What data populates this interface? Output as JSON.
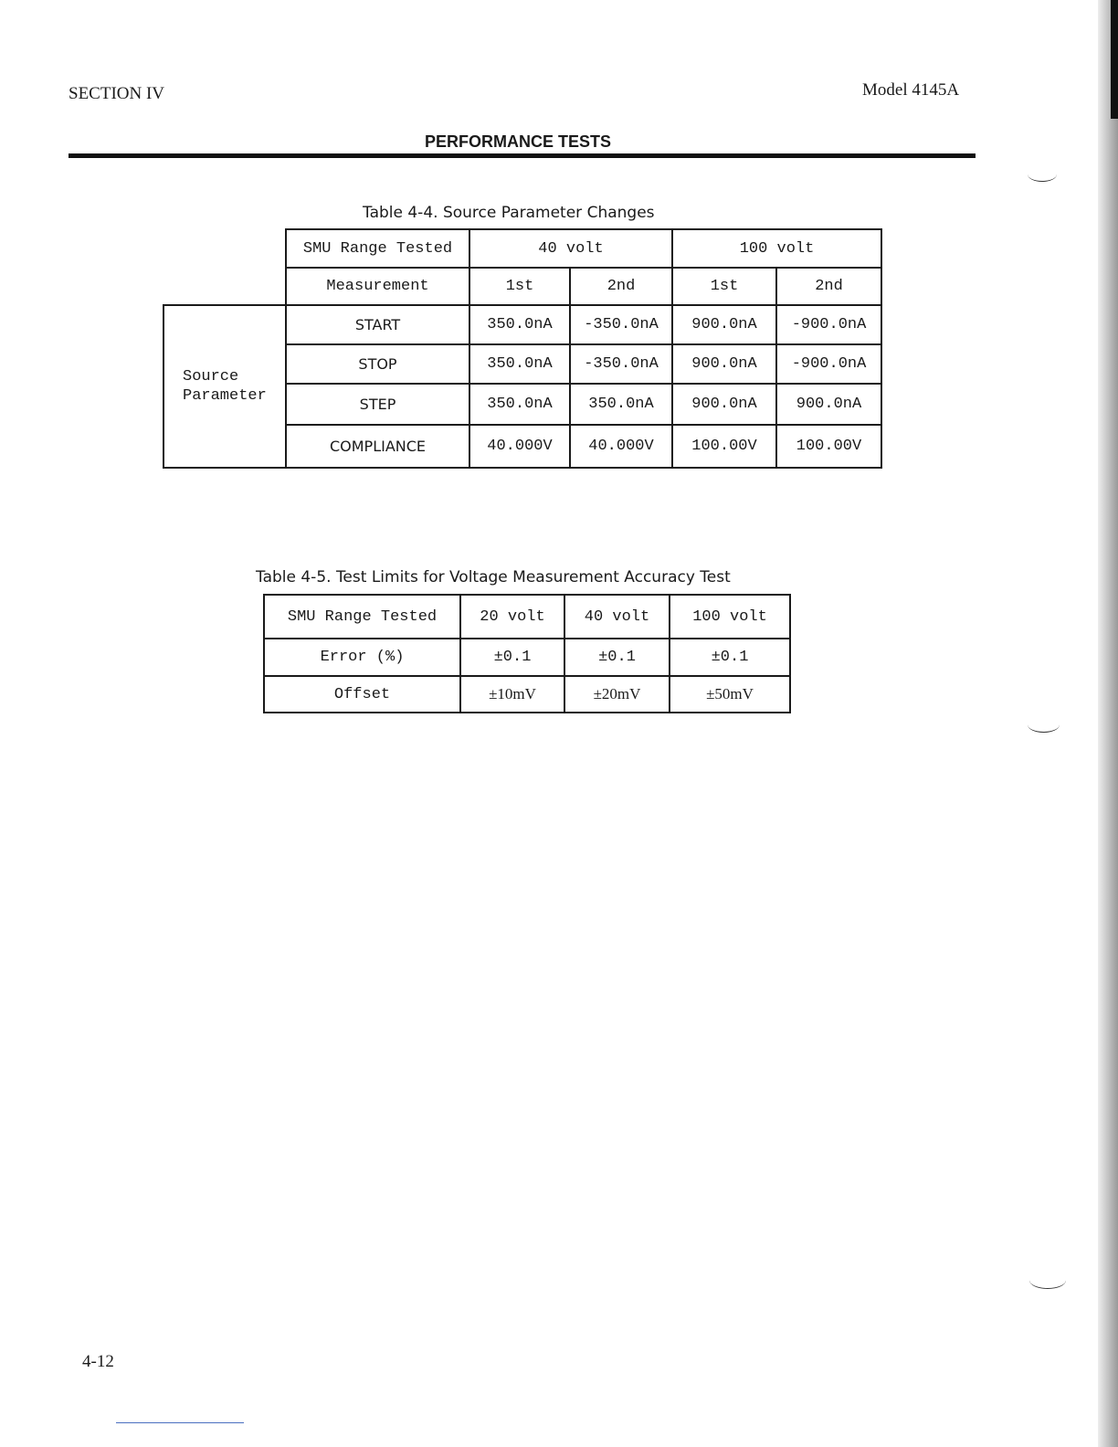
{
  "header": {
    "section": "SECTION IV",
    "model": "Model 4145A",
    "title": "PERFORMANCE TESTS"
  },
  "table_4_4": {
    "caption": "Table 4-4.  Source Parameter Changes",
    "row_group_label": "Source Parameter",
    "header_row1": [
      "SMU Range Tested",
      "40 volt",
      "100 volt"
    ],
    "header_row2": [
      "Measurement",
      "1st",
      "2nd",
      "1st",
      "2nd"
    ],
    "rows": [
      {
        "label": "START",
        "values": [
          "350.0nA",
          "-350.0nA",
          "900.0nA",
          "-900.0nA"
        ]
      },
      {
        "label": "STOP",
        "values": [
          "350.0nA",
          "-350.0nA",
          "900.0nA",
          "-900.0nA"
        ]
      },
      {
        "label": "STEP",
        "values": [
          "350.0nA",
          "350.0nA",
          "900.0nA",
          "900.0nA"
        ]
      },
      {
        "label": "COMPLIANCE",
        "values": [
          "40.000V",
          "40.000V",
          "100.00V",
          "100.00V"
        ]
      }
    ]
  },
  "table_4_5": {
    "caption": "Table 4-5.  Test Limits for Voltage Measurement Accuracy Test",
    "header": [
      "SMU Range Tested",
      "20 volt",
      "40 volt",
      "100 volt"
    ],
    "rows": [
      {
        "label": "Error (%)",
        "values": [
          "±0.1",
          "±0.1",
          "±0.1"
        ]
      },
      {
        "label": "Offset",
        "values": [
          "±10mV",
          "±20mV",
          "±50mV"
        ]
      }
    ]
  },
  "footer": {
    "page_number": "4-12"
  }
}
